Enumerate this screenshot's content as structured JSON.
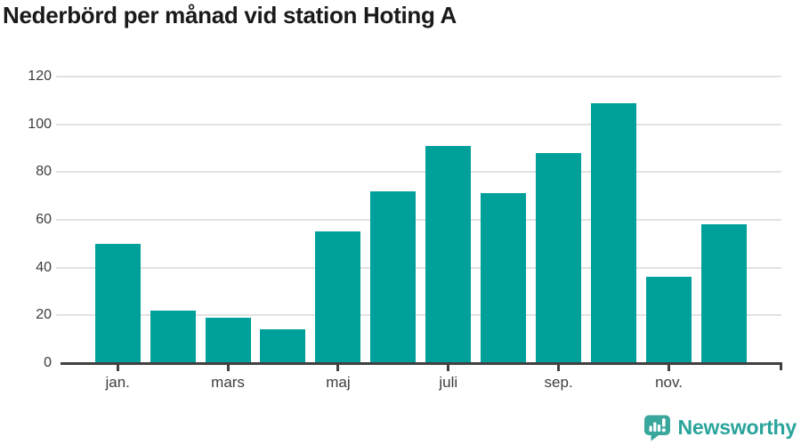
{
  "header": {
    "title": "Nederbörd per månad vid station Hoting A"
  },
  "chart_data": {
    "type": "bar",
    "title": "Nederbörd per månad vid station Hoting A",
    "values": [
      50,
      22,
      19,
      14,
      55,
      72,
      91,
      71,
      88,
      109,
      36,
      58
    ],
    "x_ticks": [
      {
        "bar_index": 0,
        "label": "jan."
      },
      {
        "bar_index": 2,
        "label": "mars"
      },
      {
        "bar_index": 4,
        "label": "maj"
      },
      {
        "bar_index": 6,
        "label": "juli"
      },
      {
        "bar_index": 8,
        "label": "sep."
      },
      {
        "bar_index": 10,
        "label": "nov."
      }
    ],
    "y_ticks": [
      0,
      20,
      40,
      60,
      80,
      100,
      120
    ],
    "ylim": [
      0,
      120
    ],
    "grid": true,
    "legend_position": "none",
    "colors": {
      "bar": "#00a09a",
      "gridline": "#e2e2e2",
      "axis_line": "#404040",
      "tick_label": "#3d3d3d",
      "title": "#1a1a1a"
    }
  },
  "branding": {
    "logo_text": "Newsworthy",
    "logo_icon": "newsworthy-speech-bubble-barchart-icon",
    "icon_color": "#3aa79d",
    "icon_glyph_color": "#ffffff",
    "text_color": "#2aa49b"
  }
}
